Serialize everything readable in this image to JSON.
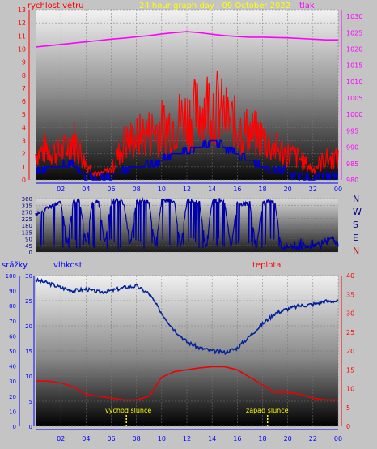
{
  "header": {
    "wind_label": "rychlost větru",
    "title": "24 hour graph day : 09 October 2022",
    "pressure_label": "tlak"
  },
  "lower_labels": {
    "precip_label": "srážky",
    "humidity_label": "vlhkost",
    "temp_label": "teplota",
    "sunrise_label": "východ slunce",
    "sunset_label": "západ slunce"
  },
  "compass": [
    "N",
    "W",
    "S",
    "E",
    "N"
  ],
  "colors": {
    "wind": "#ff0000",
    "wind_avg": "#0000cc",
    "pressure": "#ff00ff",
    "direction": "#0000aa",
    "humidity": "#00229a",
    "temperature": "#ee0000",
    "title": "#ffff00",
    "precip": "#0000ff"
  },
  "chart_data": [
    {
      "type": "line",
      "name": "wind_pressure",
      "x_ticks": [
        "02",
        "04",
        "06",
        "08",
        "10",
        "12",
        "14",
        "16",
        "18",
        "20",
        "22",
        "00"
      ],
      "y_left_ticks": [
        0,
        1,
        2,
        3,
        4,
        5,
        6,
        7,
        8,
        9,
        10,
        11,
        12,
        13
      ],
      "y_left_range": [
        0,
        13
      ],
      "y_right_ticks": [
        980,
        985,
        990,
        995,
        1000,
        1005,
        1010,
        1015,
        1020,
        1025,
        1030
      ],
      "y_right_range": [
        980,
        1032
      ],
      "x_range": [
        0,
        24
      ],
      "series": [
        {
          "key": "pressure",
          "axis": "right",
          "x": [
            0,
            1,
            2,
            3,
            4,
            5,
            6,
            7,
            8,
            9,
            10,
            11,
            12,
            13,
            14,
            15,
            16,
            17,
            18,
            19,
            20,
            21,
            22,
            23,
            24
          ],
          "values": [
            1020.6,
            1021.0,
            1021.4,
            1021.8,
            1022.2,
            1022.6,
            1023.0,
            1023.3,
            1023.7,
            1024.1,
            1024.6,
            1025.0,
            1025.3,
            1025.0,
            1024.5,
            1024.1,
            1023.8,
            1023.6,
            1023.6,
            1023.5,
            1023.4,
            1023.2,
            1023.0,
            1022.8,
            1022.8
          ]
        },
        {
          "key": "wind_gust",
          "axis": "left",
          "x": [
            0,
            1,
            2,
            3,
            4,
            5,
            6,
            7,
            8,
            9,
            10,
            11,
            12,
            13,
            14,
            15,
            16,
            17,
            18,
            19,
            20,
            21,
            22,
            23,
            24
          ],
          "values": [
            2.5,
            3.0,
            2.5,
            4.0,
            1.5,
            0.5,
            1.0,
            3.5,
            4.0,
            4.5,
            5.0,
            5.5,
            6.0,
            6.5,
            7.5,
            6.0,
            5.0,
            4.5,
            4.0,
            3.0,
            2.5,
            2.0,
            1.0,
            2.0,
            2.0
          ]
        },
        {
          "key": "wind_avg",
          "axis": "left",
          "x": [
            0,
            1,
            2,
            3,
            4,
            5,
            6,
            7,
            8,
            9,
            10,
            11,
            12,
            13,
            14,
            15,
            16,
            17,
            18,
            19,
            20,
            21,
            22,
            23,
            24
          ],
          "values": [
            0.5,
            1.0,
            1.0,
            1.2,
            0.3,
            0.0,
            0.2,
            0.8,
            1.0,
            1.2,
            1.5,
            2.0,
            2.2,
            2.5,
            3.0,
            2.5,
            2.0,
            1.5,
            1.0,
            0.8,
            0.5,
            0.3,
            0.2,
            0.4,
            0.4
          ]
        }
      ]
    },
    {
      "type": "line",
      "name": "wind_direction",
      "x_range": [
        0,
        24
      ],
      "y_ticks": [
        0,
        45,
        90,
        135,
        180,
        225,
        270,
        315,
        360
      ],
      "y_range": [
        0,
        360
      ],
      "x": [
        0,
        0.5,
        1,
        1.5,
        2,
        2.5,
        3,
        3.5,
        4,
        4.5,
        5,
        5.5,
        6,
        6.5,
        7,
        7.5,
        8,
        8.5,
        9,
        9.5,
        10,
        10.5,
        11,
        11.5,
        12,
        12.5,
        13,
        13.5,
        14,
        14.5,
        15,
        15.5,
        16,
        16.5,
        17,
        17.5,
        18,
        18.5,
        19,
        19.5,
        20,
        20.5,
        21,
        21.5,
        22,
        22.5,
        23,
        23.5,
        24
      ],
      "values": [
        250,
        270,
        300,
        320,
        340,
        60,
        340,
        350,
        60,
        330,
        340,
        60,
        340,
        350,
        330,
        40,
        340,
        350,
        330,
        30,
        340,
        350,
        340,
        30,
        340,
        350,
        330,
        20,
        340,
        350,
        330,
        20,
        340,
        320,
        330,
        20,
        330,
        340,
        330,
        20,
        40,
        30,
        20,
        35,
        40,
        60,
        80,
        90,
        50
      ]
    },
    {
      "type": "line",
      "name": "humidity_temperature",
      "x_range": [
        0,
        24
      ],
      "x_ticks": [
        "02",
        "04",
        "06",
        "08",
        "10",
        "12",
        "14",
        "16",
        "18",
        "20",
        "22",
        "00"
      ],
      "y_left_ticks": [
        0,
        5,
        10,
        15,
        20,
        25,
        30
      ],
      "y_left_range": [
        0,
        30
      ],
      "y_hum_ticks": [
        0,
        10,
        20,
        30,
        40,
        50,
        60,
        70,
        80,
        90,
        100
      ],
      "y_hum_range": [
        0,
        100
      ],
      "y_right_ticks": [
        0,
        5,
        10,
        15,
        20,
        25,
        30,
        35,
        40
      ],
      "y_right_range": [
        0,
        40
      ],
      "series": [
        {
          "key": "humidity",
          "axis": "hum",
          "x": [
            0,
            1,
            2,
            3,
            4,
            5,
            6,
            7,
            8,
            9,
            10,
            11,
            12,
            13,
            14,
            15,
            16,
            17,
            18,
            19,
            20,
            21,
            22,
            23,
            24
          ],
          "values": [
            97,
            95,
            92,
            90,
            91,
            89,
            90,
            92,
            93,
            88,
            75,
            64,
            56,
            52,
            50,
            49,
            52,
            60,
            68,
            75,
            78,
            80,
            81,
            83,
            83
          ]
        },
        {
          "key": "temperature",
          "axis": "right",
          "x": [
            0,
            1,
            2,
            3,
            4,
            5,
            6,
            7,
            8,
            9,
            10,
            11,
            12,
            13,
            14,
            15,
            16,
            17,
            18,
            19,
            20,
            21,
            22,
            23,
            24
          ],
          "values": [
            12,
            12,
            11.5,
            10.5,
            8.5,
            8,
            7.5,
            7,
            7,
            8,
            13,
            14.5,
            15,
            15.5,
            15.8,
            15.8,
            15,
            13,
            11,
            9,
            9,
            8.5,
            7.5,
            7,
            7
          ]
        }
      ],
      "sunrise_hour": 7.2,
      "sunset_hour": 18.4
    }
  ]
}
